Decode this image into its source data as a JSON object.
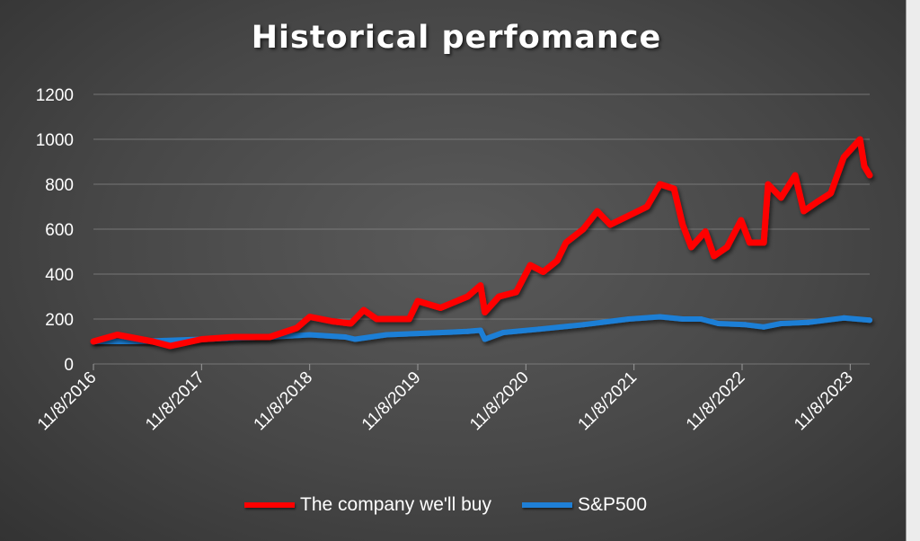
{
  "chart_data": {
    "type": "line",
    "title": "Historical perfomance",
    "xlabel": "",
    "ylabel": "",
    "ylim": [
      0,
      1200
    ],
    "yticks": [
      0,
      200,
      400,
      600,
      800,
      1000,
      1200
    ],
    "xlim": [
      2016.86,
      2024.04
    ],
    "xtick_values": [
      2016.86,
      2017.86,
      2018.86,
      2019.86,
      2020.86,
      2021.86,
      2022.86,
      2023.86
    ],
    "xtick_labels": [
      "11/8/2016",
      "11/8/2017",
      "11/8/2018",
      "11/8/2019",
      "11/8/2020",
      "11/8/2021",
      "11/8/2022",
      "11/8/2023"
    ],
    "grid": true,
    "legend_position": "bottom",
    "series": [
      {
        "name": "The company we'll buy",
        "color": "#ff0000",
        "x": [
          2016.86,
          2017.08,
          2017.41,
          2017.57,
          2017.86,
          2018.16,
          2018.49,
          2018.74,
          2018.86,
          2019.07,
          2019.24,
          2019.36,
          2019.48,
          2019.78,
          2019.86,
          2020.07,
          2020.32,
          2020.44,
          2020.48,
          2020.61,
          2020.77,
          2020.9,
          2021.02,
          2021.15,
          2021.23,
          2021.39,
          2021.52,
          2021.64,
          2021.81,
          2021.98,
          2022.1,
          2022.23,
          2022.31,
          2022.39,
          2022.52,
          2022.6,
          2022.72,
          2022.85,
          2022.93,
          2023.06,
          2023.1,
          2023.22,
          2023.35,
          2023.43,
          2023.55,
          2023.68,
          2023.8,
          2023.95,
          2023.99,
          2024.04
        ],
        "y": [
          100,
          130,
          100,
          80,
          110,
          120,
          120,
          160,
          210,
          190,
          180,
          240,
          200,
          200,
          280,
          250,
          300,
          350,
          230,
          300,
          320,
          440,
          410,
          460,
          540,
          600,
          680,
          620,
          660,
          700,
          800,
          780,
          620,
          520,
          590,
          480,
          520,
          640,
          540,
          540,
          800,
          740,
          840,
          680,
          720,
          760,
          920,
          1000,
          880,
          840
        ]
      },
      {
        "name": "S&P500",
        "color": "#1f7fd6",
        "x": [
          2016.86,
          2017.24,
          2017.86,
          2018.49,
          2018.86,
          2019.19,
          2019.28,
          2019.57,
          2020.32,
          2020.44,
          2020.48,
          2020.65,
          2020.98,
          2021.39,
          2021.81,
          2022.1,
          2022.31,
          2022.48,
          2022.64,
          2022.89,
          2023.06,
          2023.22,
          2023.47,
          2023.8,
          2024.04
        ],
        "y": [
          100,
          100,
          110,
          120,
          130,
          120,
          110,
          130,
          145,
          150,
          110,
          140,
          155,
          175,
          200,
          210,
          200,
          200,
          180,
          175,
          165,
          180,
          185,
          205,
          195
        ]
      }
    ]
  }
}
